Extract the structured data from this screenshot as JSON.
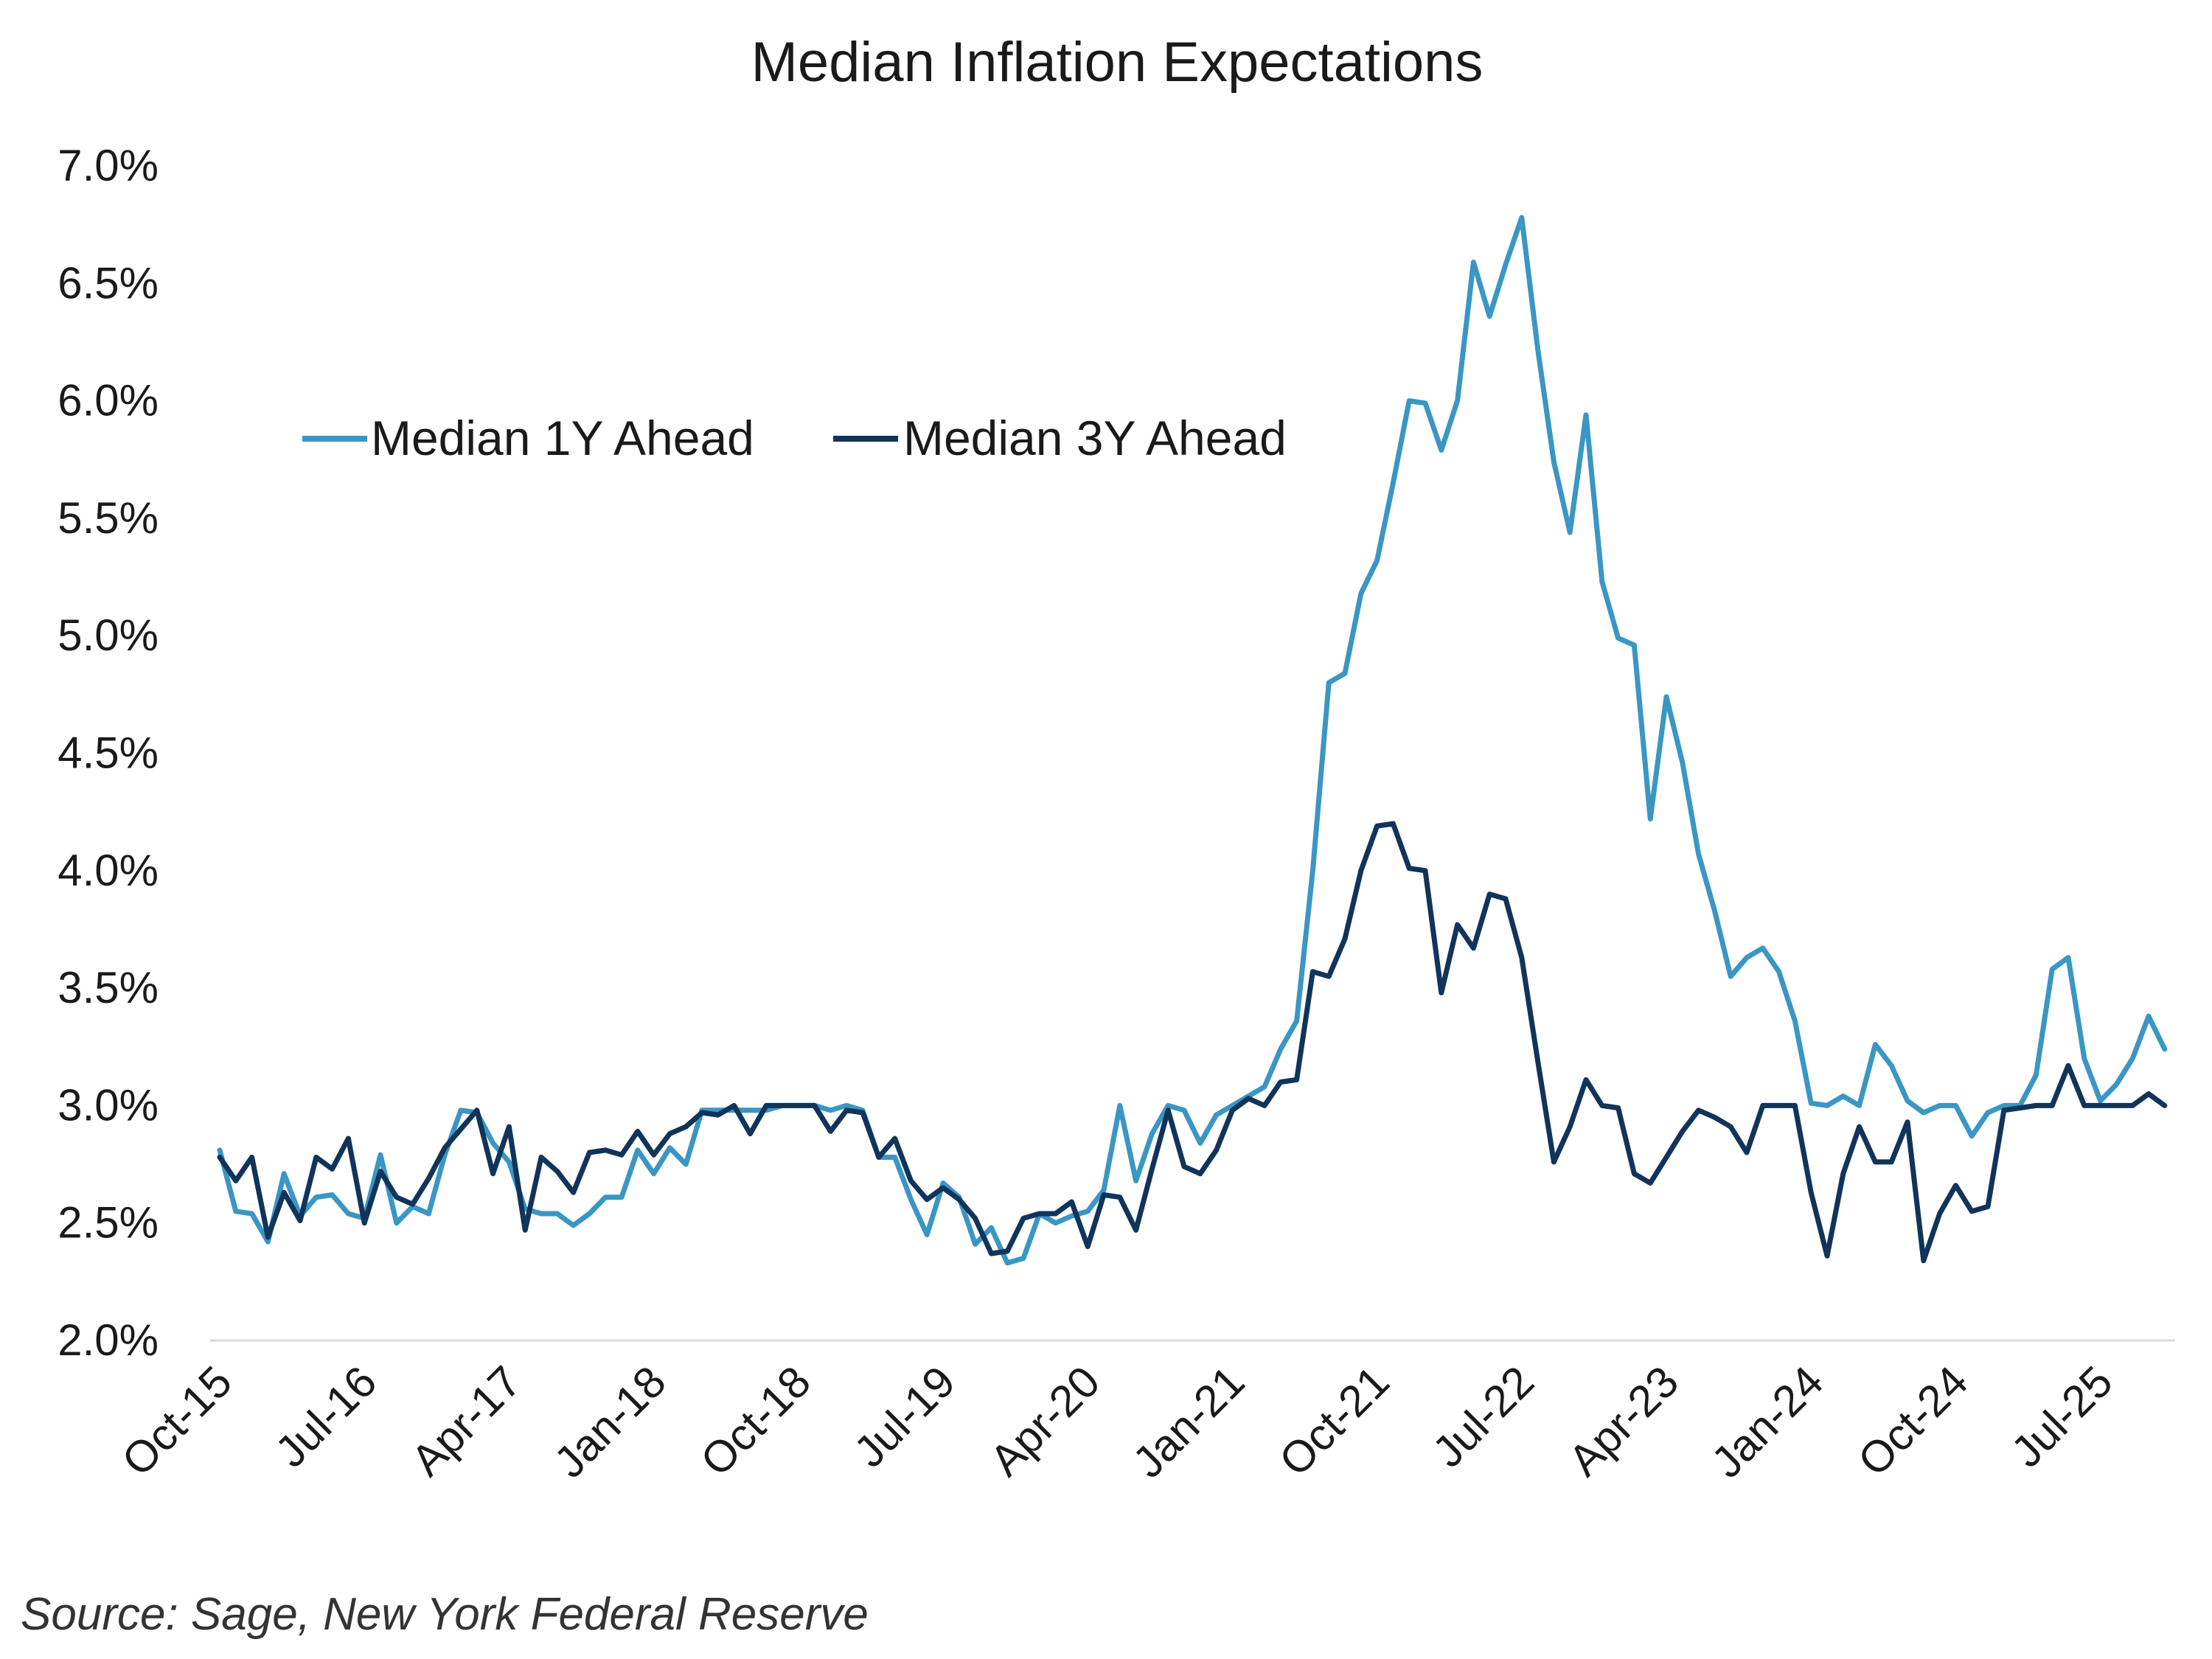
{
  "chart_data": {
    "type": "line",
    "title": "Median Inflation Expectations",
    "xlabel": "",
    "ylabel": "",
    "ylim": [
      2.0,
      7.0
    ],
    "y_ticks": [
      "2.0%",
      "2.5%",
      "3.0%",
      "3.5%",
      "4.0%",
      "4.5%",
      "5.0%",
      "5.5%",
      "6.0%",
      "6.5%",
      "7.0%"
    ],
    "x_ticks": [
      "Oct-15",
      "Jul-16",
      "Apr-17",
      "Jan-18",
      "Oct-18",
      "Jul-19",
      "Apr-20",
      "Jan-21",
      "Oct-21",
      "Jul-22",
      "Apr-23",
      "Jan-24",
      "Oct-24",
      "Jul-25"
    ],
    "x_tick_every_months": 9,
    "x_start": "Oct-15",
    "x_end": "Oct-25",
    "legend_position": "top-left",
    "source": "Source: Sage, New York Federal Reserve",
    "series": [
      {
        "name": "Median 1Y Ahead",
        "color": "#3a96c4",
        "values": [
          2.81,
          2.55,
          2.54,
          2.42,
          2.71,
          2.53,
          2.61,
          2.62,
          2.54,
          2.52,
          2.79,
          2.5,
          2.57,
          2.54,
          2.79,
          2.98,
          2.97,
          2.84,
          2.76,
          2.56,
          2.54,
          2.54,
          2.49,
          2.54,
          2.61,
          2.61,
          2.81,
          2.71,
          2.82,
          2.75,
          2.98,
          2.98,
          2.98,
          2.98,
          2.98,
          3.0,
          3.0,
          3.0,
          2.98,
          3.0,
          2.98,
          2.78,
          2.78,
          2.6,
          2.45,
          2.67,
          2.61,
          2.41,
          2.48,
          2.33,
          2.35,
          2.54,
          2.5,
          2.53,
          2.55,
          2.64,
          3.0,
          2.68,
          2.88,
          3.0,
          2.98,
          2.84,
          2.96,
          3.0,
          3.04,
          3.08,
          3.24,
          3.36,
          4.0,
          4.8,
          4.84,
          5.18,
          5.32,
          5.65,
          6.0,
          5.99,
          5.79,
          6.0,
          6.59,
          6.36,
          6.58,
          6.78,
          6.22,
          5.74,
          5.44,
          5.94,
          5.23,
          4.99,
          4.96,
          4.22,
          4.74,
          4.46,
          4.07,
          3.83,
          3.55,
          3.63,
          3.67,
          3.57,
          3.36,
          3.01,
          3.0,
          3.04,
          3.0,
          3.26,
          3.17,
          3.02,
          2.97,
          3.0,
          3.0,
          2.87,
          2.97,
          3.0,
          3.0,
          3.13,
          3.58,
          3.63,
          3.2,
          3.02,
          3.09,
          3.2,
          3.38,
          3.24
        ]
      },
      {
        "name": "Median 3Y Ahead",
        "color": "#10345a",
        "values": [
          2.78,
          2.68,
          2.78,
          2.44,
          2.63,
          2.51,
          2.78,
          2.73,
          2.86,
          2.5,
          2.72,
          2.61,
          2.58,
          2.69,
          2.82,
          2.9,
          2.98,
          2.71,
          2.91,
          2.47,
          2.78,
          2.72,
          2.63,
          2.8,
          2.81,
          2.79,
          2.89,
          2.79,
          2.88,
          2.91,
          2.97,
          2.96,
          3.0,
          2.88,
          3.0,
          3.0,
          3.0,
          3.0,
          2.89,
          2.98,
          2.97,
          2.78,
          2.86,
          2.68,
          2.6,
          2.65,
          2.6,
          2.52,
          2.37,
          2.38,
          2.52,
          2.54,
          2.54,
          2.59,
          2.4,
          2.62,
          2.61,
          2.47,
          2.73,
          2.98,
          2.74,
          2.71,
          2.81,
          2.98,
          3.03,
          3.0,
          3.1,
          3.11,
          3.57,
          3.55,
          3.71,
          4.0,
          4.19,
          4.2,
          4.01,
          4.0,
          3.48,
          3.77,
          3.67,
          3.9,
          3.88,
          3.63,
          3.19,
          2.76,
          2.91,
          3.11,
          3.0,
          2.99,
          2.71,
          2.67,
          2.78,
          2.89,
          2.98,
          2.95,
          2.91,
          2.8,
          3.0,
          3.0,
          3.0,
          2.63,
          2.36,
          2.71,
          2.91,
          2.76,
          2.76,
          2.93,
          2.34,
          2.54,
          2.66,
          2.55,
          2.57,
          2.98,
          2.99,
          3.0,
          3.0,
          3.17,
          3.0,
          3.0,
          3.0,
          3.0,
          3.05,
          3.0
        ]
      }
    ]
  }
}
